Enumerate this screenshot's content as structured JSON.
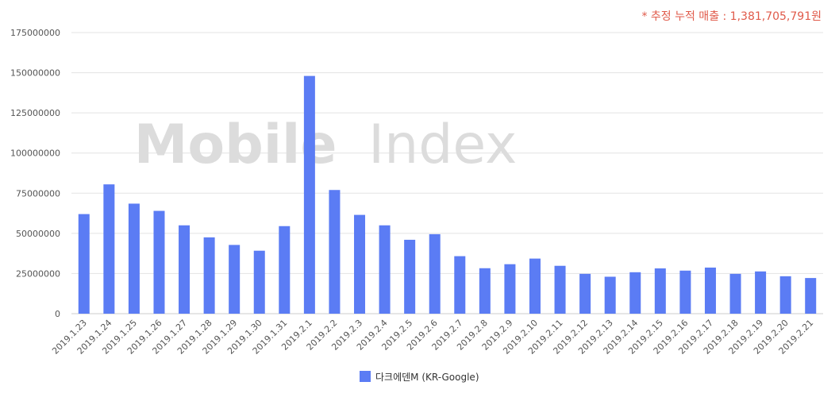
{
  "note": "* 추정 누적 매출 : 1,381,705,791원",
  "watermark": {
    "part1": "Mobile",
    "part2": "Index"
  },
  "colors": {
    "bar": "#5b7cf4",
    "grid": "#e3e3e3",
    "note": "#e05a4a"
  },
  "chart_data": {
    "type": "bar",
    "categories": [
      "2019.1.23",
      "2019.1.24",
      "2019.1.25",
      "2019.1.26",
      "2019.1.27",
      "2019.1.28",
      "2019.1.29",
      "2019.1.30",
      "2019.1.31",
      "2019.2.1",
      "2019.2.2",
      "2019.2.3",
      "2019.2.4",
      "2019.2.5",
      "2019.2.6",
      "2019.2.7",
      "2019.2.8",
      "2019.2.9",
      "2019.2.10",
      "2019.2.11",
      "2019.2.12",
      "2019.2.13",
      "2019.2.14",
      "2019.2.15",
      "2019.2.16",
      "2019.2.17",
      "2019.2.18",
      "2019.2.19",
      "2019.2.20",
      "2019.2.21"
    ],
    "series": [
      {
        "name": "다크에덴M (KR-Google)",
        "values": [
          62000000,
          80500000,
          68500000,
          64000000,
          55000000,
          47500000,
          42800000,
          39200000,
          54500000,
          148000000,
          77000000,
          61500000,
          55000000,
          46000000,
          49500000,
          35800000,
          28300000,
          30800000,
          34300000,
          29800000,
          24800000,
          23000000,
          25800000,
          28200000,
          26800000,
          28700000,
          24800000,
          26300000,
          23300000,
          22200000
        ]
      }
    ],
    "yticks": [
      "0",
      "25000000",
      "50000000",
      "75000000",
      "100000000",
      "125000000",
      "150000000",
      "175000000"
    ],
    "ylim": [
      0,
      175000000
    ],
    "grid": true,
    "legend_position": "bottom-center"
  }
}
